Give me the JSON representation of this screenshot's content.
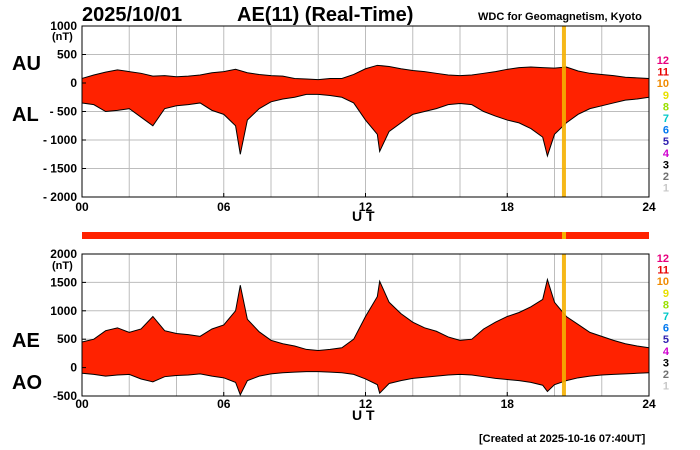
{
  "header": {
    "date": "2025/10/01",
    "title": "AE(11) (Real-Time)",
    "source": "WDC for Geomagnetism, Kyoto"
  },
  "footer": "[Created at 2025-10-16 07:40UT]",
  "colors": {
    "fill": "#ff2200",
    "highlight": "#f5b000",
    "grid": "#bdbdbd",
    "frame": "#000000"
  },
  "legend_levels": [
    {
      "label": "12",
      "color": "#e8007e"
    },
    {
      "label": "11",
      "color": "#e80000"
    },
    {
      "label": "10",
      "color": "#f08a00"
    },
    {
      "label": "9",
      "color": "#e8e000"
    },
    {
      "label": "8",
      "color": "#9ae000"
    },
    {
      "label": "7",
      "color": "#00c8c8"
    },
    {
      "label": "6",
      "color": "#0078f0"
    },
    {
      "label": "5",
      "color": "#3020b0"
    },
    {
      "label": "4",
      "color": "#d000d0"
    },
    {
      "label": "3",
      "color": "#000000"
    },
    {
      "label": "2",
      "color": "#707070"
    },
    {
      "label": "1",
      "color": "#c8c8c8"
    }
  ],
  "chart_data": [
    {
      "type": "area",
      "series": [
        {
          "name": "AU"
        },
        {
          "name": "AL"
        }
      ],
      "unit": "(nT)",
      "xlabel": "U T",
      "xlim": [
        0,
        24
      ],
      "x_ticks": [
        "00",
        "06",
        "12",
        "18",
        "24"
      ],
      "ylim": [
        -2000,
        1000
      ],
      "y_ticks": [
        {
          "value": 1000,
          "label": "1000"
        },
        {
          "value": 500,
          "label": "500"
        },
        {
          "value": 0,
          "label": "0"
        },
        {
          "value": -500,
          "label": "- 500"
        },
        {
          "value": -1000,
          "label": "- 1000"
        },
        {
          "value": -1500,
          "label": "- 1500"
        },
        {
          "value": -2000,
          "label": "- 2000"
        }
      ],
      "grid": true,
      "highlight_x": 20.4,
      "upper": [
        [
          0,
          80
        ],
        [
          0.5,
          140
        ],
        [
          1,
          190
        ],
        [
          1.5,
          230
        ],
        [
          2,
          200
        ],
        [
          2.5,
          170
        ],
        [
          3,
          120
        ],
        [
          3.5,
          130
        ],
        [
          4,
          110
        ],
        [
          4.5,
          120
        ],
        [
          5,
          140
        ],
        [
          5.5,
          180
        ],
        [
          6,
          200
        ],
        [
          6.5,
          240
        ],
        [
          7,
          180
        ],
        [
          7.5,
          150
        ],
        [
          8,
          130
        ],
        [
          8.5,
          120
        ],
        [
          9,
          80
        ],
        [
          9.5,
          70
        ],
        [
          10,
          60
        ],
        [
          10.5,
          80
        ],
        [
          11,
          80
        ],
        [
          11.5,
          150
        ],
        [
          12,
          250
        ],
        [
          12.5,
          310
        ],
        [
          13,
          290
        ],
        [
          13.5,
          250
        ],
        [
          14,
          220
        ],
        [
          14.5,
          200
        ],
        [
          15,
          170
        ],
        [
          15.5,
          140
        ],
        [
          16,
          130
        ],
        [
          16.5,
          140
        ],
        [
          17,
          170
        ],
        [
          17.5,
          200
        ],
        [
          18,
          240
        ],
        [
          18.5,
          270
        ],
        [
          19,
          280
        ],
        [
          19.5,
          270
        ],
        [
          20,
          260
        ],
        [
          20.5,
          280
        ],
        [
          21,
          210
        ],
        [
          21.5,
          170
        ],
        [
          22,
          150
        ],
        [
          22.5,
          130
        ],
        [
          23,
          100
        ],
        [
          23.5,
          90
        ],
        [
          24,
          80
        ]
      ],
      "lower": [
        [
          0,
          -350
        ],
        [
          0.5,
          -380
        ],
        [
          1,
          -500
        ],
        [
          1.5,
          -480
        ],
        [
          2,
          -450
        ],
        [
          2.5,
          -600
        ],
        [
          3,
          -750
        ],
        [
          3.5,
          -450
        ],
        [
          4,
          -400
        ],
        [
          4.5,
          -380
        ],
        [
          5,
          -350
        ],
        [
          5.5,
          -480
        ],
        [
          6,
          -550
        ],
        [
          6.5,
          -750
        ],
        [
          6.7,
          -1250
        ],
        [
          7,
          -650
        ],
        [
          7.5,
          -450
        ],
        [
          8,
          -330
        ],
        [
          8.5,
          -280
        ],
        [
          9,
          -250
        ],
        [
          9.5,
          -200
        ],
        [
          10,
          -200
        ],
        [
          10.5,
          -220
        ],
        [
          11,
          -250
        ],
        [
          11.5,
          -350
        ],
        [
          12,
          -650
        ],
        [
          12.5,
          -900
        ],
        [
          12.6,
          -1200
        ],
        [
          13,
          -850
        ],
        [
          13.5,
          -700
        ],
        [
          14,
          -550
        ],
        [
          14.5,
          -500
        ],
        [
          15,
          -450
        ],
        [
          15.5,
          -380
        ],
        [
          16,
          -360
        ],
        [
          16.5,
          -380
        ],
        [
          17,
          -500
        ],
        [
          17.5,
          -580
        ],
        [
          18,
          -650
        ],
        [
          18.5,
          -700
        ],
        [
          19,
          -800
        ],
        [
          19.5,
          -950
        ],
        [
          19.7,
          -1280
        ],
        [
          20,
          -900
        ],
        [
          20.5,
          -700
        ],
        [
          21,
          -550
        ],
        [
          21.5,
          -450
        ],
        [
          22,
          -400
        ],
        [
          22.5,
          -350
        ],
        [
          23,
          -300
        ],
        [
          23.5,
          -280
        ],
        [
          24,
          -250
        ]
      ]
    },
    {
      "type": "area",
      "series": [
        {
          "name": "AE"
        },
        {
          "name": "AO"
        }
      ],
      "unit": "(nT)",
      "xlabel": "U T",
      "xlim": [
        0,
        24
      ],
      "x_ticks": [
        "00",
        "06",
        "12",
        "18",
        "24"
      ],
      "ylim": [
        -500,
        2000
      ],
      "y_ticks": [
        {
          "value": 2000,
          "label": "2000"
        },
        {
          "value": 1500,
          "label": "1500"
        },
        {
          "value": 1000,
          "label": "1000"
        },
        {
          "value": 500,
          "label": "500"
        },
        {
          "value": 0,
          "label": "0"
        },
        {
          "value": -500,
          "label": "-500"
        }
      ],
      "grid": true,
      "highlight_x": 20.4,
      "upper": [
        [
          0,
          450
        ],
        [
          0.5,
          500
        ],
        [
          1,
          650
        ],
        [
          1.5,
          700
        ],
        [
          2,
          620
        ],
        [
          2.5,
          680
        ],
        [
          3,
          900
        ],
        [
          3.5,
          650
        ],
        [
          4,
          600
        ],
        [
          4.5,
          580
        ],
        [
          5,
          550
        ],
        [
          5.5,
          680
        ],
        [
          6,
          750
        ],
        [
          6.5,
          1000
        ],
        [
          6.7,
          1450
        ],
        [
          7,
          850
        ],
        [
          7.5,
          630
        ],
        [
          8,
          480
        ],
        [
          8.5,
          420
        ],
        [
          9,
          380
        ],
        [
          9.5,
          320
        ],
        [
          10,
          300
        ],
        [
          10.5,
          320
        ],
        [
          11,
          350
        ],
        [
          11.5,
          500
        ],
        [
          12,
          900
        ],
        [
          12.5,
          1250
        ],
        [
          12.6,
          1520
        ],
        [
          13,
          1150
        ],
        [
          13.5,
          950
        ],
        [
          14,
          800
        ],
        [
          14.5,
          700
        ],
        [
          15,
          640
        ],
        [
          15.5,
          540
        ],
        [
          16,
          480
        ],
        [
          16.5,
          500
        ],
        [
          17,
          680
        ],
        [
          17.5,
          800
        ],
        [
          18,
          900
        ],
        [
          18.5,
          970
        ],
        [
          19,
          1070
        ],
        [
          19.5,
          1200
        ],
        [
          19.7,
          1550
        ],
        [
          20,
          1150
        ],
        [
          20.5,
          900
        ],
        [
          21,
          760
        ],
        [
          21.5,
          620
        ],
        [
          22,
          550
        ],
        [
          22.5,
          480
        ],
        [
          23,
          420
        ],
        [
          23.5,
          380
        ],
        [
          24,
          350
        ]
      ],
      "lower": [
        [
          0,
          -100
        ],
        [
          0.5,
          -120
        ],
        [
          1,
          -150
        ],
        [
          1.5,
          -130
        ],
        [
          2,
          -120
        ],
        [
          2.5,
          -200
        ],
        [
          3,
          -250
        ],
        [
          3.5,
          -160
        ],
        [
          4,
          -140
        ],
        [
          4.5,
          -130
        ],
        [
          5,
          -110
        ],
        [
          5.5,
          -150
        ],
        [
          6,
          -180
        ],
        [
          6.5,
          -260
        ],
        [
          6.7,
          -480
        ],
        [
          7,
          -230
        ],
        [
          7.5,
          -150
        ],
        [
          8,
          -110
        ],
        [
          8.5,
          -90
        ],
        [
          9,
          -80
        ],
        [
          9.5,
          -70
        ],
        [
          10,
          -70
        ],
        [
          10.5,
          -80
        ],
        [
          11,
          -90
        ],
        [
          11.5,
          -120
        ],
        [
          12,
          -200
        ],
        [
          12.5,
          -300
        ],
        [
          12.6,
          -450
        ],
        [
          13,
          -280
        ],
        [
          13.5,
          -230
        ],
        [
          14,
          -190
        ],
        [
          14.5,
          -170
        ],
        [
          15,
          -150
        ],
        [
          15.5,
          -130
        ],
        [
          16,
          -120
        ],
        [
          16.5,
          -130
        ],
        [
          17,
          -160
        ],
        [
          17.5,
          -190
        ],
        [
          18,
          -210
        ],
        [
          18.5,
          -230
        ],
        [
          19,
          -260
        ],
        [
          19.5,
          -310
        ],
        [
          19.7,
          -420
        ],
        [
          20,
          -300
        ],
        [
          20.5,
          -230
        ],
        [
          21,
          -180
        ],
        [
          21.5,
          -150
        ],
        [
          22,
          -130
        ],
        [
          22.5,
          -120
        ],
        [
          23,
          -110
        ],
        [
          23.5,
          -100
        ],
        [
          24,
          -90
        ]
      ]
    }
  ]
}
